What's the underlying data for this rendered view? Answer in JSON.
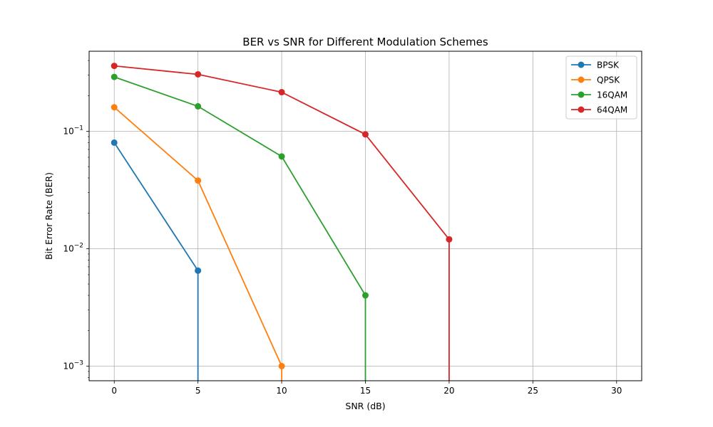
{
  "chart_data": {
    "type": "line",
    "title": "BER vs SNR for Different Modulation Schemes",
    "xlabel": "SNR (dB)",
    "ylabel": "Bit Error Rate (BER)",
    "xscale": "linear",
    "yscale": "log",
    "xlim": [
      -1.5,
      31.5
    ],
    "ylim": [
      0.00075,
      0.48
    ],
    "xticks": [
      0,
      5,
      10,
      15,
      20,
      25,
      30
    ],
    "yticks": [
      {
        "value": 0.001,
        "base": "10",
        "exp": "−3"
      },
      {
        "value": 0.01,
        "base": "10",
        "exp": "−2"
      },
      {
        "value": 0.1,
        "base": "10",
        "exp": "−1"
      }
    ],
    "grid": true,
    "legend_position": "top-right",
    "x": [
      0,
      5,
      10,
      15,
      20,
      25,
      30
    ],
    "series": [
      {
        "name": "BPSK",
        "color": "#1f77b4",
        "values": [
          0.08,
          0.0065,
          0,
          0,
          0,
          0,
          0
        ]
      },
      {
        "name": "QPSK",
        "color": "#ff7f0e",
        "values": [
          0.16,
          0.038,
          0.001,
          0,
          0,
          0,
          0
        ]
      },
      {
        "name": "16QAM",
        "color": "#2ca02c",
        "values": [
          0.29,
          0.163,
          0.061,
          0.004,
          0,
          0,
          0
        ]
      },
      {
        "name": "64QAM",
        "color": "#d62728",
        "values": [
          0.36,
          0.305,
          0.215,
          0.094,
          0.012,
          0,
          0
        ]
      }
    ]
  }
}
